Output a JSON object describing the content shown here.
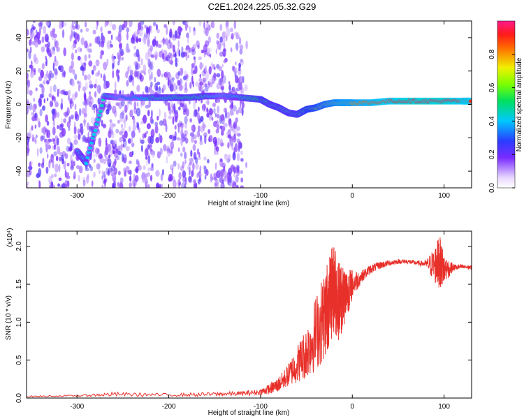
{
  "title": "C2E1.2024.225.05.32.G29",
  "chart_data": [
    {
      "type": "heatmap",
      "xlabel": "Height of straight line (km)",
      "ylabel": "Frequency (Hz)",
      "xlim": [
        -355,
        130
      ],
      "ylim": [
        -50,
        50
      ],
      "xticks": [
        -300,
        -200,
        -100,
        0,
        100
      ],
      "yticks": [
        -40,
        -20,
        0,
        20,
        40
      ],
      "colorbar": {
        "label": "Normalized spectral amplitude",
        "range": [
          0,
          1
        ],
        "ticks": [
          0.0,
          0.2,
          0.4,
          0.6,
          0.8
        ]
      },
      "ridge": {
        "x": [
          -300,
          -290,
          -270,
          -250,
          -220,
          -200,
          -180,
          -160,
          -140,
          -120,
          -100,
          -90,
          -80,
          -70,
          -60,
          -50,
          -40,
          -30,
          -20,
          -10,
          0,
          20,
          40,
          60,
          80,
          100,
          120,
          130
        ],
        "frequency": [
          -28,
          -35,
          5,
          4,
          4,
          4,
          4,
          5,
          5,
          4,
          3,
          0,
          -2,
          -5,
          -6,
          -3,
          -2,
          0,
          1,
          1,
          1,
          1,
          2,
          2,
          2,
          2,
          2,
          2
        ],
        "amplitude": [
          0.4,
          0.4,
          0.45,
          0.3,
          0.45,
          0.45,
          0.5,
          0.45,
          0.35,
          0.45,
          0.55,
          0.5,
          0.5,
          0.5,
          0.5,
          0.6,
          0.65,
          0.7,
          0.75,
          0.8,
          0.8,
          0.85,
          0.9,
          0.95,
          0.95,
          0.95,
          0.9,
          0.9
        ]
      }
    },
    {
      "type": "line",
      "xlabel": "Height of straight line (km)",
      "ylabel": "SNR (10 * v/v)",
      "y_multiplier": "(x10⁴)",
      "xlim": [
        -355,
        130
      ],
      "ylim": [
        0,
        2.2
      ],
      "xticks": [
        -300,
        -200,
        -100,
        0,
        100
      ],
      "yticks": [
        0.0,
        0.5,
        1.0,
        1.5,
        2.0
      ],
      "series": [
        {
          "color": "#e8302a",
          "x": [
            -355,
            -300,
            -260,
            -200,
            -150,
            -120,
            -100,
            -90,
            -80,
            -70,
            -60,
            -50,
            -40,
            -30,
            -25,
            -20,
            -15,
            -10,
            -5,
            0,
            10,
            20,
            30,
            40,
            50,
            60,
            70,
            80,
            90,
            95,
            100,
            110,
            120,
            130
          ],
          "values": [
            0.02,
            0.03,
            0.05,
            0.04,
            0.05,
            0.06,
            0.08,
            0.12,
            0.18,
            0.3,
            0.45,
            0.6,
            0.85,
            1.1,
            1.3,
            1.45,
            1.3,
            1.35,
            1.4,
            1.5,
            1.6,
            1.7,
            1.75,
            1.78,
            1.8,
            1.8,
            1.78,
            1.77,
            1.75,
            1.8,
            1.7,
            1.72,
            1.73,
            1.72
          ],
          "jitter": [
            0.01,
            0.01,
            0.03,
            0.02,
            0.03,
            0.03,
            0.04,
            0.07,
            0.1,
            0.15,
            0.25,
            0.35,
            0.5,
            0.6,
            0.6,
            0.6,
            0.55,
            0.45,
            0.3,
            0.2,
            0.08,
            0.06,
            0.05,
            0.04,
            0.03,
            0.03,
            0.03,
            0.04,
            0.25,
            0.35,
            0.2,
            0.05,
            0.03,
            0.03
          ]
        }
      ]
    }
  ]
}
